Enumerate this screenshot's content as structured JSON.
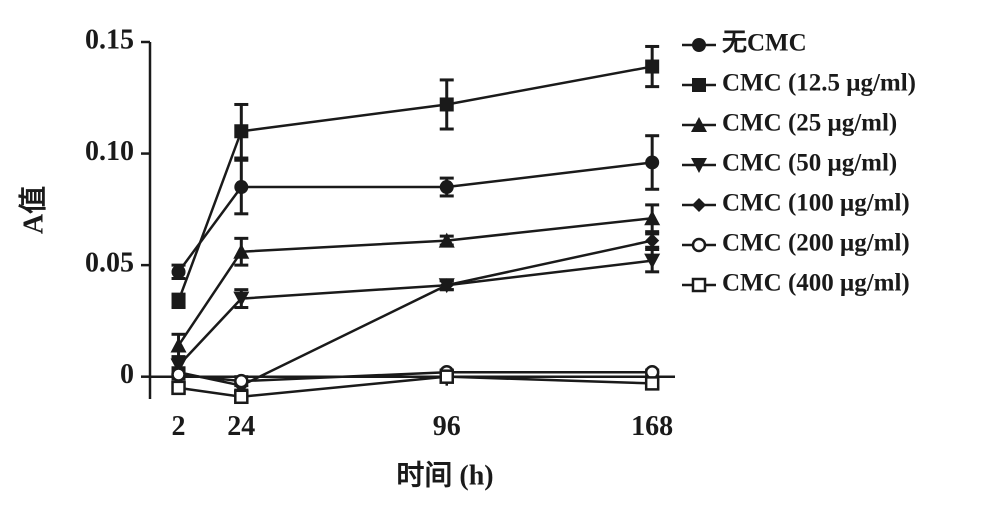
{
  "chart_data": {
    "type": "line",
    "x_label": "时间 (h)",
    "y_label": "A值",
    "x": [
      2,
      24,
      96,
      168
    ],
    "xlim": [
      -8,
      176
    ],
    "ylim": [
      -0.01,
      0.15
    ],
    "yticks": [
      0,
      0.05,
      {
        "value": 0.1,
        "label": "0.10"
      },
      0.15
    ],
    "xticks": [
      2,
      24,
      96,
      168
    ],
    "series": [
      {
        "name": "无CMC",
        "color": "#1a1a1a",
        "marker": "circle",
        "values": [
          0.047,
          0.085,
          0.085,
          0.096
        ],
        "errors": [
          0.003,
          0.012,
          0.004,
          0.012
        ]
      },
      {
        "name": "CMC (12.5 μg/ml)",
        "color": "#1a1a1a",
        "marker": "square",
        "values": [
          0.034,
          0.11,
          0.122,
          0.139
        ],
        "errors": [
          0.003,
          0.012,
          0.011,
          0.009
        ]
      },
      {
        "name": "CMC (25 μg/ml)",
        "color": "#1a1a1a",
        "marker": "triangle-up",
        "values": [
          0.014,
          0.056,
          0.061,
          0.071
        ],
        "errors": [
          0.005,
          0.006,
          0.002,
          0.006
        ]
      },
      {
        "name": "CMC (50 μg/ml)",
        "color": "#1a1a1a",
        "marker": "triangle-down",
        "values": [
          0.005,
          0.035,
          0.041,
          0.052
        ],
        "errors": [
          0.003,
          0.004,
          0.002,
          0.005
        ]
      },
      {
        "name": "CMC (100 μg/ml)",
        "color": "#1a1a1a",
        "marker": "diamond",
        "values": [
          0.002,
          -0.004,
          0.041,
          0.061
        ],
        "errors": [
          0.002,
          0.002,
          0.002,
          0.003
        ]
      },
      {
        "name": "CMC (200 μg/ml)",
        "color": "#1a1a1a",
        "marker": "circle-open",
        "values": [
          0.001,
          -0.002,
          0.002,
          0.002
        ],
        "errors": [
          0.002,
          0.002,
          0.001,
          0.001
        ]
      },
      {
        "name": "CMC (400 μg/ml)",
        "color": "#1a1a1a",
        "marker": "square-open",
        "values": [
          -0.005,
          -0.009,
          0,
          -0.003
        ],
        "errors": [
          0.002,
          0.002,
          0.001,
          0.002
        ]
      }
    ]
  }
}
